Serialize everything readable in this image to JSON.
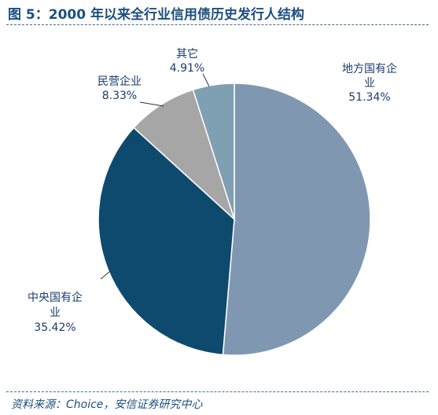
{
  "header": {
    "title": "图 5：2000 年以来全行业信用债历史发行人结构"
  },
  "footer": {
    "source": "资料来源：Choice，安信证券研究中心"
  },
  "chart_data": {
    "type": "pie",
    "title": "图 5：2000 年以来全行业信用债历史发行人结构",
    "slices": [
      {
        "label_lines": [
          "地方国有企",
          "业"
        ],
        "value_text": "51.34%",
        "value": 51.34,
        "color": "#8097b1"
      },
      {
        "label_lines": [
          "中央国有企",
          "业"
        ],
        "value_text": "35.42%",
        "value": 35.42,
        "color": "#0d4a6e"
      },
      {
        "label_lines": [
          "民营企业"
        ],
        "value_text": "8.33%",
        "value": 8.33,
        "color": "#a6a6a6"
      },
      {
        "label_lines": [
          "其它"
        ],
        "value_text": "4.91%",
        "value": 4.91,
        "color": "#7f9fb3"
      }
    ],
    "start_angle": "12 o'clock",
    "direction": "clockwise",
    "legend": "none"
  }
}
